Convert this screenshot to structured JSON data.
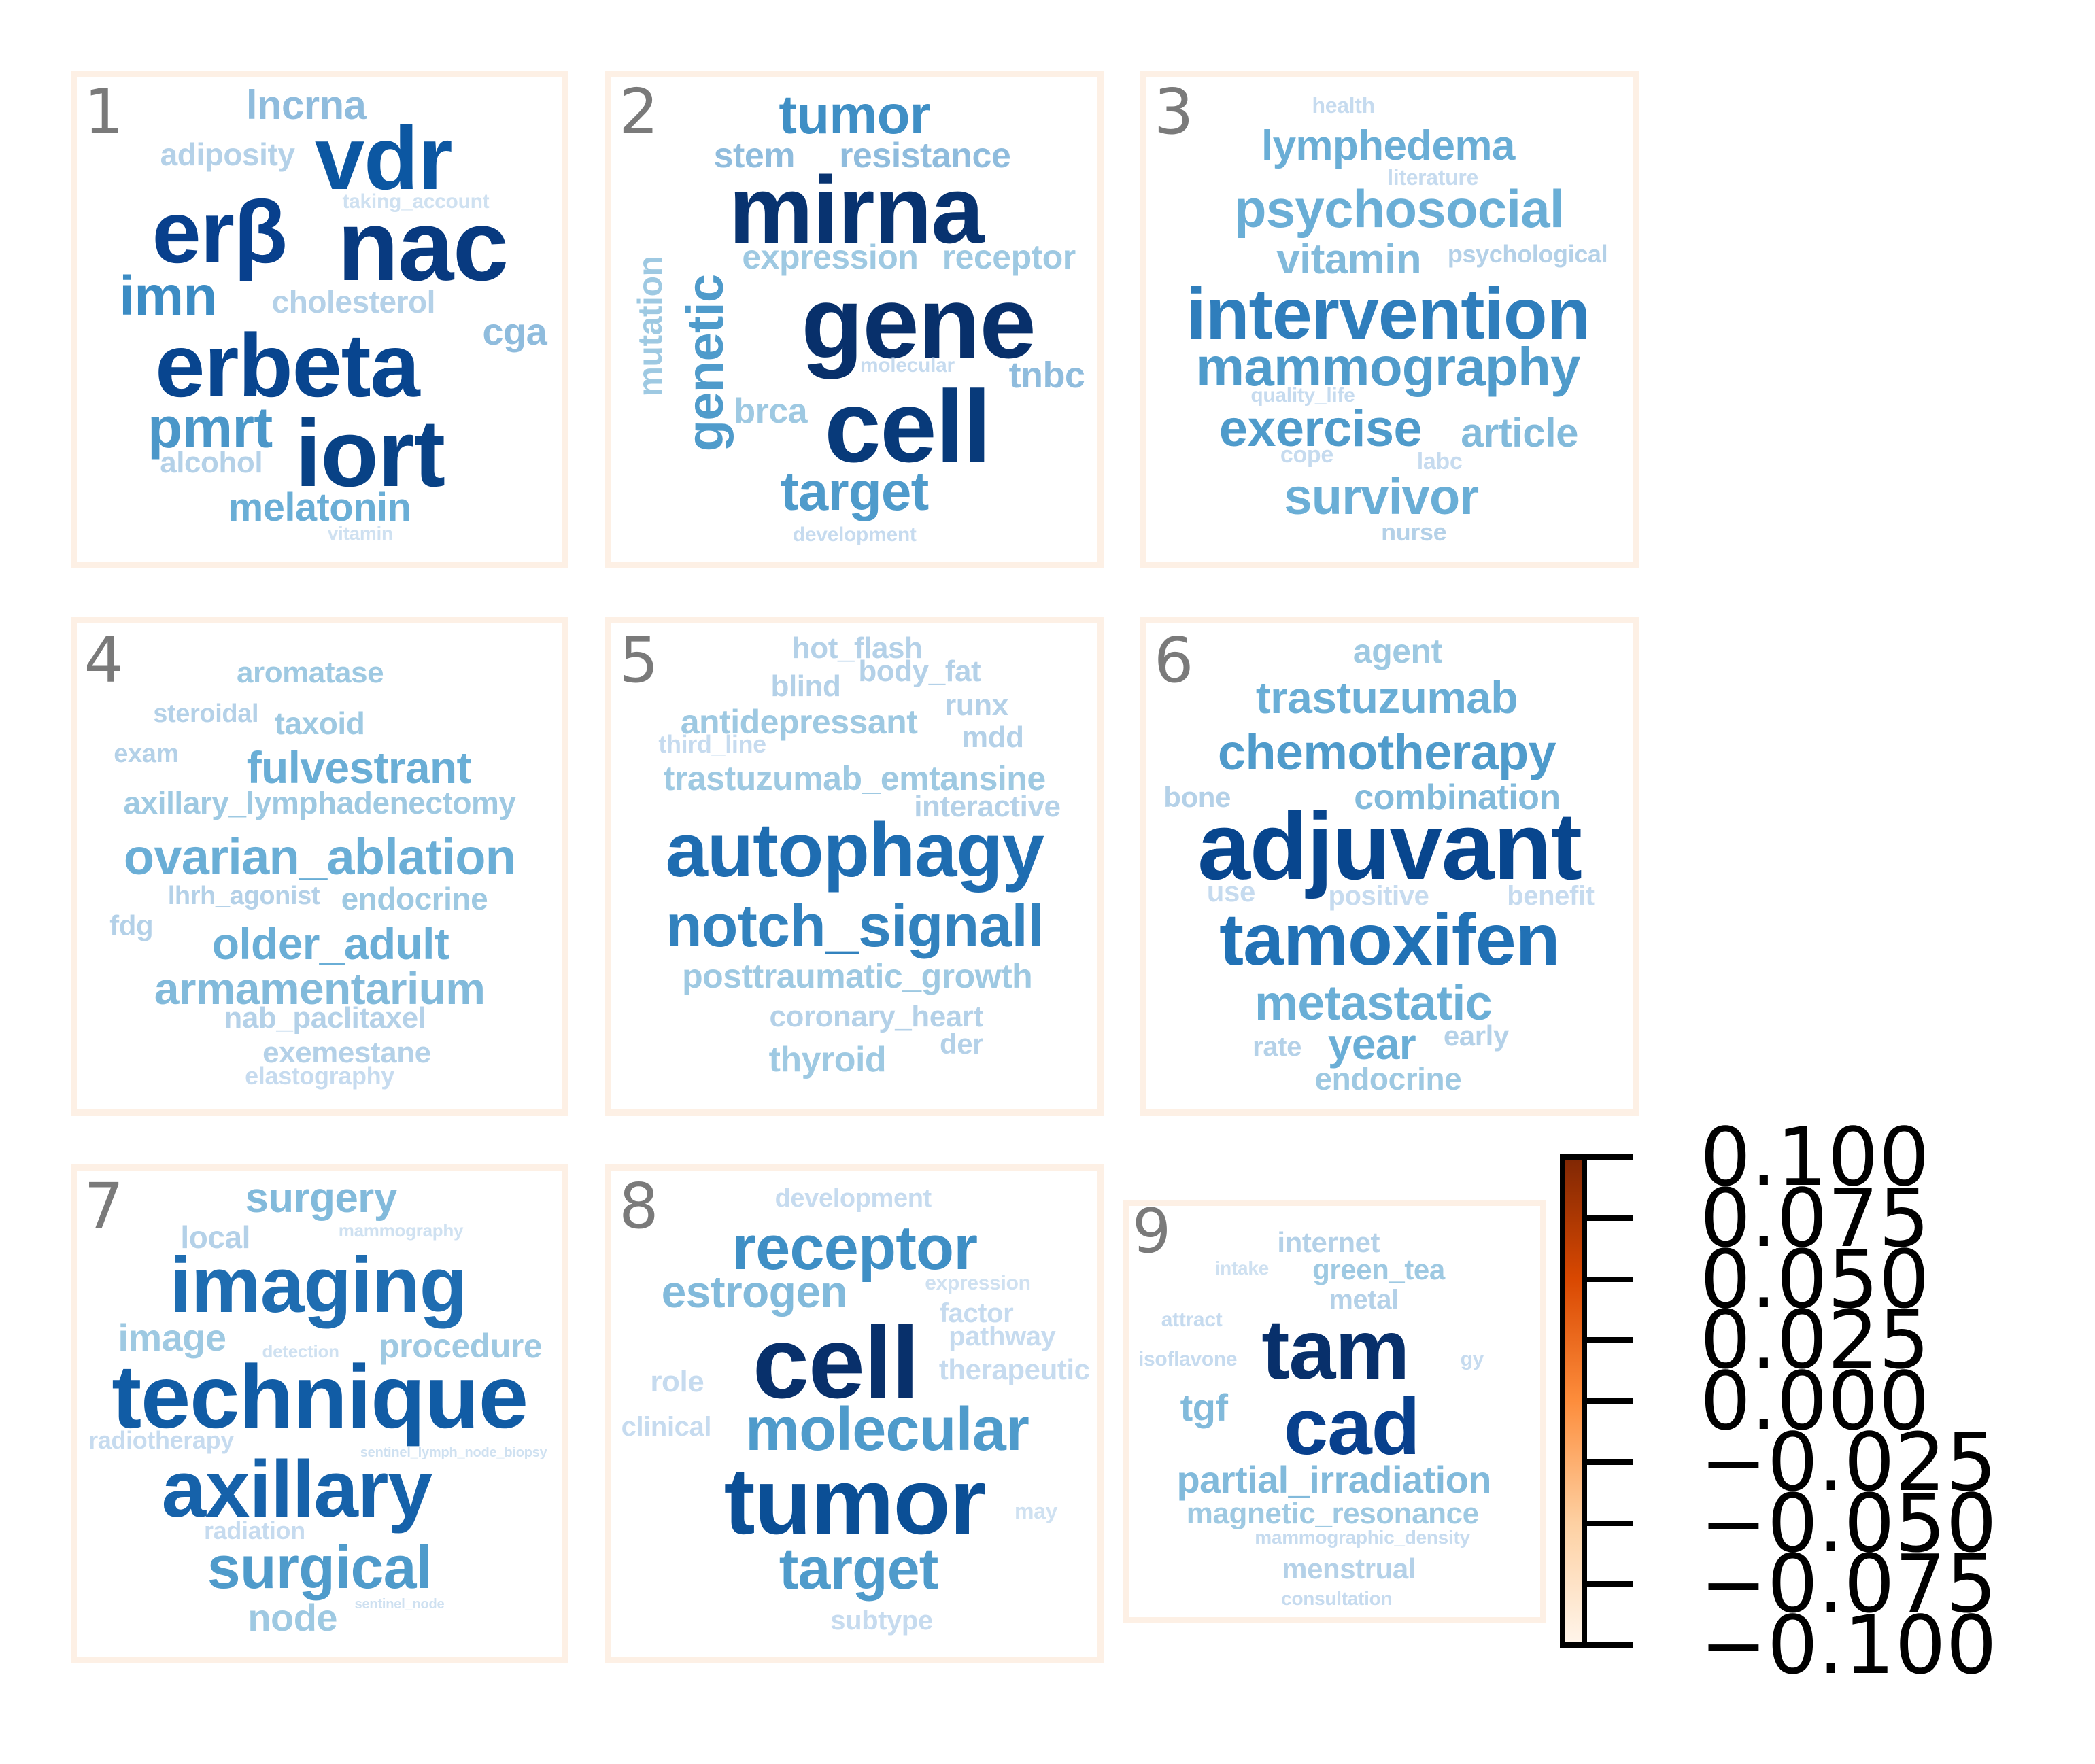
{
  "panels": [
    {
      "number": "1",
      "words": [
        {
          "text": "lncrna",
          "size": 60,
          "color": "#8fbcdd"
        },
        {
          "text": "adiposity",
          "size": 46,
          "color": "#b4d1e8"
        },
        {
          "text": "vdr",
          "size": 132,
          "color": "#0c57a2"
        },
        {
          "text": "taking_account",
          "size": 30,
          "color": "#cfe1f1"
        },
        {
          "text": "erβ",
          "size": 130,
          "color": "#08408d"
        },
        {
          "text": "nac",
          "size": 148,
          "color": "#083a80"
        },
        {
          "text": "imn",
          "size": 82,
          "color": "#3c8cc4"
        },
        {
          "text": "cholesterol",
          "size": 46,
          "color": "#b4d1e8"
        },
        {
          "text": "cga",
          "size": 56,
          "color": "#8fbcdd"
        },
        {
          "text": "erbeta",
          "size": 132,
          "color": "#08458f"
        },
        {
          "text": "pmrt",
          "size": 84,
          "color": "#4b97c9"
        },
        {
          "text": "alcohol",
          "size": 44,
          "color": "#b4d1e8"
        },
        {
          "text": "iort",
          "size": 140,
          "color": "#084286"
        },
        {
          "text": "melatonin",
          "size": 58,
          "color": "#6aaed6"
        },
        {
          "text": "vitamin",
          "size": 28,
          "color": "#cfe1f1"
        }
      ]
    },
    {
      "number": "2",
      "words": [
        {
          "text": "tumor",
          "size": 80,
          "color": "#3f8fc5"
        },
        {
          "text": "stem",
          "size": 52,
          "color": "#8fbcdd"
        },
        {
          "text": "resistance",
          "size": 52,
          "color": "#8fbcdd"
        },
        {
          "text": "mirna",
          "size": 140,
          "color": "#083370"
        },
        {
          "text": "expression",
          "size": 50,
          "color": "#9ec9e2"
        },
        {
          "text": "receptor",
          "size": 50,
          "color": "#9ec9e2"
        },
        {
          "text": "mutation",
          "size": 50,
          "color": "#9ec9e2"
        },
        {
          "text": "genetic",
          "size": 76,
          "color": "#4f9bcb"
        },
        {
          "text": "gene",
          "size": 150,
          "color": "#08306b"
        },
        {
          "text": "molecular",
          "size": 30,
          "color": "#c6dbef"
        },
        {
          "text": "tnbc",
          "size": 54,
          "color": "#8fbcdd"
        },
        {
          "text": "brca",
          "size": 52,
          "color": "#9ec9e2"
        },
        {
          "text": "cell",
          "size": 150,
          "color": "#083a7a"
        },
        {
          "text": "target",
          "size": 80,
          "color": "#4f9bcb"
        },
        {
          "text": "development",
          "size": 30,
          "color": "#c6dbef"
        }
      ]
    },
    {
      "number": "3",
      "words": [
        {
          "text": "health",
          "size": 32,
          "color": "#c6dbef"
        },
        {
          "text": "lymphedema",
          "size": 62,
          "color": "#6aaed6"
        },
        {
          "text": "literature",
          "size": 32,
          "color": "#c6dbef"
        },
        {
          "text": "psychosocial",
          "size": 78,
          "color": "#6aaed6"
        },
        {
          "text": "vitamin",
          "size": 62,
          "color": "#82badb"
        },
        {
          "text": "psychological",
          "size": 36,
          "color": "#b4d1e8"
        },
        {
          "text": "intervention",
          "size": 106,
          "color": "#2f7ebc"
        },
        {
          "text": "mammography",
          "size": 80,
          "color": "#4f9bcb"
        },
        {
          "text": "quality_life",
          "size": 30,
          "color": "#c6dbef"
        },
        {
          "text": "exercise",
          "size": 76,
          "color": "#4f9bcb"
        },
        {
          "text": "article",
          "size": 60,
          "color": "#82badb"
        },
        {
          "text": "cope",
          "size": 34,
          "color": "#c6dbef"
        },
        {
          "text": "labc",
          "size": 34,
          "color": "#c6dbef"
        },
        {
          "text": "survivor",
          "size": 74,
          "color": "#6aaed6"
        },
        {
          "text": "nurse",
          "size": 36,
          "color": "#b4d1e8"
        }
      ]
    },
    {
      "number": "4",
      "words": [
        {
          "text": "aromatase",
          "size": 44,
          "color": "#9ec9e2"
        },
        {
          "text": "steroidal",
          "size": 38,
          "color": "#b4d1e8"
        },
        {
          "text": "taxoid",
          "size": 46,
          "color": "#9ec9e2"
        },
        {
          "text": "exam",
          "size": 38,
          "color": "#b4d1e8"
        },
        {
          "text": "fulvestrant",
          "size": 66,
          "color": "#6aaed6"
        },
        {
          "text": "axillary_lymphadenectomy",
          "size": 46,
          "color": "#9ec9e2"
        },
        {
          "text": "ovarian_ablation",
          "size": 74,
          "color": "#6aaed6"
        },
        {
          "text": "lhrh_agonist",
          "size": 38,
          "color": "#b4d1e8"
        },
        {
          "text": "endocrine",
          "size": 46,
          "color": "#9ec9e2"
        },
        {
          "text": "fdg",
          "size": 42,
          "color": "#b4d1e8"
        },
        {
          "text": "older_adult",
          "size": 66,
          "color": "#6aaed6"
        },
        {
          "text": "armamentarium",
          "size": 66,
          "color": "#82badb"
        },
        {
          "text": "nab_paclitaxel",
          "size": 44,
          "color": "#b4d1e8"
        },
        {
          "text": "exemestane",
          "size": 44,
          "color": "#b4d1e8"
        },
        {
          "text": "elastography",
          "size": 36,
          "color": "#c6dbef"
        }
      ]
    },
    {
      "number": "5",
      "words": [
        {
          "text": "hot_flash",
          "size": 44,
          "color": "#b4d1e8"
        },
        {
          "text": "blind",
          "size": 44,
          "color": "#b4d1e8"
        },
        {
          "text": "body_fat",
          "size": 44,
          "color": "#b4d1e8"
        },
        {
          "text": "runx",
          "size": 44,
          "color": "#b4d1e8"
        },
        {
          "text": "antidepressant",
          "size": 50,
          "color": "#9ec9e2"
        },
        {
          "text": "third_line",
          "size": 36,
          "color": "#c6dbef"
        },
        {
          "text": "mdd",
          "size": 44,
          "color": "#b4d1e8"
        },
        {
          "text": "trastuzumab_emtansine",
          "size": 50,
          "color": "#9ec9e2"
        },
        {
          "text": "interactive",
          "size": 44,
          "color": "#b4d1e8"
        },
        {
          "text": "autophagy",
          "size": 112,
          "color": "#1f6db1"
        },
        {
          "text": "notch_signall",
          "size": 88,
          "color": "#3282be"
        },
        {
          "text": "posttraumatic_growth",
          "size": 50,
          "color": "#9ec9e2"
        },
        {
          "text": "coronary_heart",
          "size": 44,
          "color": "#b4d1e8"
        },
        {
          "text": "der",
          "size": 42,
          "color": "#b4d1e8"
        },
        {
          "text": "thyroid",
          "size": 52,
          "color": "#9ec9e2"
        }
      ]
    },
    {
      "number": "6",
      "words": [
        {
          "text": "agent",
          "size": 50,
          "color": "#9ec9e2"
        },
        {
          "text": "trastuzumab",
          "size": 66,
          "color": "#6aaed6"
        },
        {
          "text": "chemotherapy",
          "size": 74,
          "color": "#4f9bcb"
        },
        {
          "text": "bone",
          "size": 42,
          "color": "#b4d1e8"
        },
        {
          "text": "combination",
          "size": 52,
          "color": "#82badb"
        },
        {
          "text": "adjuvant",
          "size": 140,
          "color": "#08468e"
        },
        {
          "text": "use",
          "size": 42,
          "color": "#c6dbef"
        },
        {
          "text": "positive",
          "size": 40,
          "color": "#c6dbef"
        },
        {
          "text": "benefit",
          "size": 40,
          "color": "#c6dbef"
        },
        {
          "text": "tamoxifen",
          "size": 108,
          "color": "#2171b5"
        },
        {
          "text": "metastatic",
          "size": 72,
          "color": "#6aaed6"
        },
        {
          "text": "rate",
          "size": 40,
          "color": "#b4d1e8"
        },
        {
          "text": "year",
          "size": 64,
          "color": "#6aaed6"
        },
        {
          "text": "early",
          "size": 42,
          "color": "#b4d1e8"
        },
        {
          "text": "endocrine",
          "size": 46,
          "color": "#9ec9e2"
        }
      ]
    },
    {
      "number": "7",
      "words": [
        {
          "text": "surgery",
          "size": 62,
          "color": "#82badb"
        },
        {
          "text": "local",
          "size": 46,
          "color": "#b4d1e8"
        },
        {
          "text": "mammography",
          "size": 26,
          "color": "#cfe1f1"
        },
        {
          "text": "imaging",
          "size": 116,
          "color": "#1f6db1"
        },
        {
          "text": "image",
          "size": 56,
          "color": "#9ec9e2"
        },
        {
          "text": "detection",
          "size": 26,
          "color": "#cfe1f1"
        },
        {
          "text": "procedure",
          "size": 50,
          "color": "#9ec9e2"
        },
        {
          "text": "technique",
          "size": 132,
          "color": "#115ca5"
        },
        {
          "text": "radiotherapy",
          "size": 36,
          "color": "#c6dbef"
        },
        {
          "text": "sentinel_lymph_node_biopsy",
          "size": 20,
          "color": "#cfe1f1"
        },
        {
          "text": "axillary",
          "size": 118,
          "color": "#1662aa"
        },
        {
          "text": "radiation",
          "size": 36,
          "color": "#c6dbef"
        },
        {
          "text": "surgical",
          "size": 88,
          "color": "#4f9bcb"
        },
        {
          "text": "node",
          "size": 56,
          "color": "#9ec9e2"
        },
        {
          "text": "sentinel_node",
          "size": 20,
          "color": "#cfe1f1"
        }
      ]
    },
    {
      "number": "8",
      "words": [
        {
          "text": "development",
          "size": 38,
          "color": "#c6dbef"
        },
        {
          "text": "receptor",
          "size": 92,
          "color": "#3f8fc5"
        },
        {
          "text": "estrogen",
          "size": 66,
          "color": "#82badb"
        },
        {
          "text": "expression",
          "size": 30,
          "color": "#cfe1f1"
        },
        {
          "text": "factor",
          "size": 40,
          "color": "#c6dbef"
        },
        {
          "text": "cell",
          "size": 150,
          "color": "#08306b"
        },
        {
          "text": "pathway",
          "size": 40,
          "color": "#c6dbef"
        },
        {
          "text": "role",
          "size": 44,
          "color": "#c6dbef"
        },
        {
          "text": "therapeutic",
          "size": 42,
          "color": "#c6dbef"
        },
        {
          "text": "clinical",
          "size": 40,
          "color": "#c6dbef"
        },
        {
          "text": "molecular",
          "size": 90,
          "color": "#4f9bcb"
        },
        {
          "text": "tumor",
          "size": 138,
          "color": "#0b4f96"
        },
        {
          "text": "may",
          "size": 32,
          "color": "#cfe1f1"
        },
        {
          "text": "target",
          "size": 86,
          "color": "#4f9bcb"
        },
        {
          "text": "subtype",
          "size": 40,
          "color": "#c6dbef"
        }
      ]
    },
    {
      "number": "9",
      "words": [
        {
          "text": "internet",
          "size": 42,
          "color": "#b4d1e8"
        },
        {
          "text": "intake",
          "size": 28,
          "color": "#cfe1f1"
        },
        {
          "text": "green_tea",
          "size": 42,
          "color": "#9ec9e2"
        },
        {
          "text": "metal",
          "size": 40,
          "color": "#b4d1e8"
        },
        {
          "text": "attract",
          "size": 30,
          "color": "#c6dbef"
        },
        {
          "text": "tam",
          "size": 124,
          "color": "#08306b"
        },
        {
          "text": "isoflavone",
          "size": 30,
          "color": "#c6dbef"
        },
        {
          "text": "gy",
          "size": 30,
          "color": "#c6dbef"
        },
        {
          "text": "tgf",
          "size": 56,
          "color": "#82badb"
        },
        {
          "text": "cad",
          "size": 118,
          "color": "#08408d"
        },
        {
          "text": "partial_irradiation",
          "size": 56,
          "color": "#82badb"
        },
        {
          "text": "magnetic_resonance",
          "size": 44,
          "color": "#9ec9e2"
        },
        {
          "text": "mammographic_density",
          "size": 28,
          "color": "#c6dbef"
        },
        {
          "text": "menstrual",
          "size": 42,
          "color": "#b4d1e8"
        },
        {
          "text": "consultation",
          "size": 28,
          "color": "#c6dbef"
        }
      ]
    }
  ],
  "colorbar": {
    "colormap": "Oranges",
    "colors": [
      "#fff5eb",
      "#fdd0a2",
      "#fd8d3c",
      "#d94801",
      "#7f2704"
    ],
    "range": [
      -0.1,
      0.1
    ],
    "ticks": [
      "0.100",
      "0.075",
      "0.050",
      "0.025",
      "0.000",
      "−0.025",
      "−0.050",
      "−0.075",
      "−0.100"
    ]
  }
}
